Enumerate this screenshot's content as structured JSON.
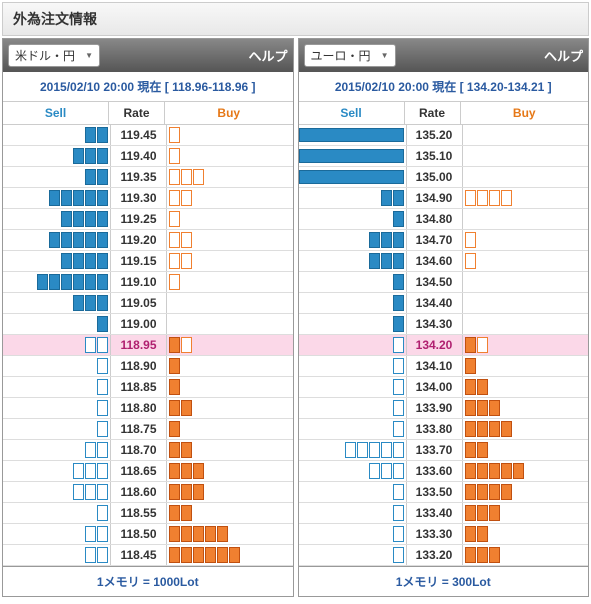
{
  "title": "外為注文情報",
  "help_label": "ヘルプ",
  "colors": {
    "sell": "#2a8ac4",
    "buy": "#f08030",
    "highlight_bg": "#fbd8e8",
    "highlight_text": "#b02070",
    "header_grad_top": "#888888",
    "header_grad_bottom": "#555555"
  },
  "headers": {
    "sell": "Sell",
    "rate": "Rate",
    "buy": "Buy"
  },
  "panels": [
    {
      "pair": "米ドル・円",
      "timestamp": "2015/02/10 20:00 現在",
      "range": "118.96-118.96",
      "footer": "1メモリ = 1000Lot",
      "lot_unit": 1000,
      "rows": [
        {
          "rate": "119.45",
          "sell_filled": 2,
          "sell_open": 0,
          "sell_max": false,
          "buy_filled": 0,
          "buy_open": 1,
          "hl": false
        },
        {
          "rate": "119.40",
          "sell_filled": 3,
          "sell_open": 0,
          "sell_max": false,
          "buy_filled": 0,
          "buy_open": 1,
          "hl": false
        },
        {
          "rate": "119.35",
          "sell_filled": 2,
          "sell_open": 0,
          "sell_max": false,
          "buy_filled": 0,
          "buy_open": 3,
          "hl": false
        },
        {
          "rate": "119.30",
          "sell_filled": 5,
          "sell_open": 0,
          "sell_max": false,
          "buy_filled": 0,
          "buy_open": 2,
          "hl": false
        },
        {
          "rate": "119.25",
          "sell_filled": 4,
          "sell_open": 0,
          "sell_max": false,
          "buy_filled": 0,
          "buy_open": 1,
          "hl": false
        },
        {
          "rate": "119.20",
          "sell_filled": 5,
          "sell_open": 0,
          "sell_max": false,
          "buy_filled": 0,
          "buy_open": 2,
          "hl": false
        },
        {
          "rate": "119.15",
          "sell_filled": 4,
          "sell_open": 0,
          "sell_max": false,
          "buy_filled": 0,
          "buy_open": 2,
          "hl": false
        },
        {
          "rate": "119.10",
          "sell_filled": 6,
          "sell_open": 0,
          "sell_max": false,
          "buy_filled": 0,
          "buy_open": 1,
          "hl": false
        },
        {
          "rate": "119.05",
          "sell_filled": 3,
          "sell_open": 0,
          "sell_max": false,
          "buy_filled": 0,
          "buy_open": 0,
          "hl": false
        },
        {
          "rate": "119.00",
          "sell_filled": 1,
          "sell_open": 0,
          "sell_max": false,
          "buy_filled": 0,
          "buy_open": 0,
          "hl": false
        },
        {
          "rate": "118.95",
          "sell_filled": 0,
          "sell_open": 2,
          "sell_max": false,
          "buy_filled": 1,
          "buy_open": 1,
          "hl": true
        },
        {
          "rate": "118.90",
          "sell_filled": 0,
          "sell_open": 1,
          "sell_max": false,
          "buy_filled": 1,
          "buy_open": 0,
          "hl": false
        },
        {
          "rate": "118.85",
          "sell_filled": 0,
          "sell_open": 1,
          "sell_max": false,
          "buy_filled": 1,
          "buy_open": 0,
          "hl": false
        },
        {
          "rate": "118.80",
          "sell_filled": 0,
          "sell_open": 1,
          "sell_max": false,
          "buy_filled": 2,
          "buy_open": 0,
          "hl": false
        },
        {
          "rate": "118.75",
          "sell_filled": 0,
          "sell_open": 1,
          "sell_max": false,
          "buy_filled": 1,
          "buy_open": 0,
          "hl": false
        },
        {
          "rate": "118.70",
          "sell_filled": 0,
          "sell_open": 2,
          "sell_max": false,
          "buy_filled": 2,
          "buy_open": 0,
          "hl": false
        },
        {
          "rate": "118.65",
          "sell_filled": 0,
          "sell_open": 3,
          "sell_max": false,
          "buy_filled": 3,
          "buy_open": 0,
          "hl": false
        },
        {
          "rate": "118.60",
          "sell_filled": 0,
          "sell_open": 3,
          "sell_max": false,
          "buy_filled": 3,
          "buy_open": 0,
          "hl": false
        },
        {
          "rate": "118.55",
          "sell_filled": 0,
          "sell_open": 1,
          "sell_max": false,
          "buy_filled": 2,
          "buy_open": 0,
          "hl": false
        },
        {
          "rate": "118.50",
          "sell_filled": 0,
          "sell_open": 2,
          "sell_max": false,
          "buy_filled": 5,
          "buy_open": 0,
          "hl": false
        },
        {
          "rate": "118.45",
          "sell_filled": 0,
          "sell_open": 2,
          "sell_max": false,
          "buy_filled": 6,
          "buy_open": 0,
          "hl": false
        }
      ]
    },
    {
      "pair": "ユーロ・円",
      "timestamp": "2015/02/10 20:00 現在",
      "range": "134.20-134.21",
      "footer": "1メモリ = 300Lot",
      "lot_unit": 300,
      "rows": [
        {
          "rate": "135.20",
          "sell_filled": 0,
          "sell_open": 0,
          "sell_max": true,
          "buy_filled": 0,
          "buy_open": 0,
          "hl": false
        },
        {
          "rate": "135.10",
          "sell_filled": 0,
          "sell_open": 0,
          "sell_max": true,
          "buy_filled": 0,
          "buy_open": 0,
          "hl": false
        },
        {
          "rate": "135.00",
          "sell_filled": 0,
          "sell_open": 0,
          "sell_max": true,
          "buy_filled": 0,
          "buy_open": 0,
          "hl": false
        },
        {
          "rate": "134.90",
          "sell_filled": 2,
          "sell_open": 0,
          "sell_max": false,
          "buy_filled": 0,
          "buy_open": 4,
          "hl": false
        },
        {
          "rate": "134.80",
          "sell_filled": 1,
          "sell_open": 0,
          "sell_max": false,
          "buy_filled": 0,
          "buy_open": 0,
          "hl": false
        },
        {
          "rate": "134.70",
          "sell_filled": 3,
          "sell_open": 0,
          "sell_max": false,
          "buy_filled": 0,
          "buy_open": 1,
          "hl": false
        },
        {
          "rate": "134.60",
          "sell_filled": 3,
          "sell_open": 0,
          "sell_max": false,
          "buy_filled": 0,
          "buy_open": 1,
          "hl": false
        },
        {
          "rate": "134.50",
          "sell_filled": 1,
          "sell_open": 0,
          "sell_max": false,
          "buy_filled": 0,
          "buy_open": 0,
          "hl": false
        },
        {
          "rate": "134.40",
          "sell_filled": 1,
          "sell_open": 0,
          "sell_max": false,
          "buy_filled": 0,
          "buy_open": 0,
          "hl": false
        },
        {
          "rate": "134.30",
          "sell_filled": 1,
          "sell_open": 0,
          "sell_max": false,
          "buy_filled": 0,
          "buy_open": 0,
          "hl": false
        },
        {
          "rate": "134.20",
          "sell_filled": 0,
          "sell_open": 1,
          "sell_max": false,
          "buy_filled": 1,
          "buy_open": 1,
          "hl": true
        },
        {
          "rate": "134.10",
          "sell_filled": 0,
          "sell_open": 1,
          "sell_max": false,
          "buy_filled": 1,
          "buy_open": 0,
          "hl": false
        },
        {
          "rate": "134.00",
          "sell_filled": 0,
          "sell_open": 1,
          "sell_max": false,
          "buy_filled": 2,
          "buy_open": 0,
          "hl": false
        },
        {
          "rate": "133.90",
          "sell_filled": 0,
          "sell_open": 1,
          "sell_max": false,
          "buy_filled": 3,
          "buy_open": 0,
          "hl": false
        },
        {
          "rate": "133.80",
          "sell_filled": 0,
          "sell_open": 1,
          "sell_max": false,
          "buy_filled": 4,
          "buy_open": 0,
          "hl": false
        },
        {
          "rate": "133.70",
          "sell_filled": 0,
          "sell_open": 5,
          "sell_max": false,
          "buy_filled": 2,
          "buy_open": 0,
          "hl": false
        },
        {
          "rate": "133.60",
          "sell_filled": 0,
          "sell_open": 3,
          "sell_max": false,
          "buy_filled": 5,
          "buy_open": 0,
          "hl": false
        },
        {
          "rate": "133.50",
          "sell_filled": 0,
          "sell_open": 1,
          "sell_max": false,
          "buy_filled": 4,
          "buy_open": 0,
          "hl": false
        },
        {
          "rate": "133.40",
          "sell_filled": 0,
          "sell_open": 1,
          "sell_max": false,
          "buy_filled": 3,
          "buy_open": 0,
          "hl": false
        },
        {
          "rate": "133.30",
          "sell_filled": 0,
          "sell_open": 1,
          "sell_max": false,
          "buy_filled": 2,
          "buy_open": 0,
          "hl": false
        },
        {
          "rate": "133.20",
          "sell_filled": 0,
          "sell_open": 1,
          "sell_max": false,
          "buy_filled": 3,
          "buy_open": 0,
          "hl": false
        }
      ]
    }
  ]
}
